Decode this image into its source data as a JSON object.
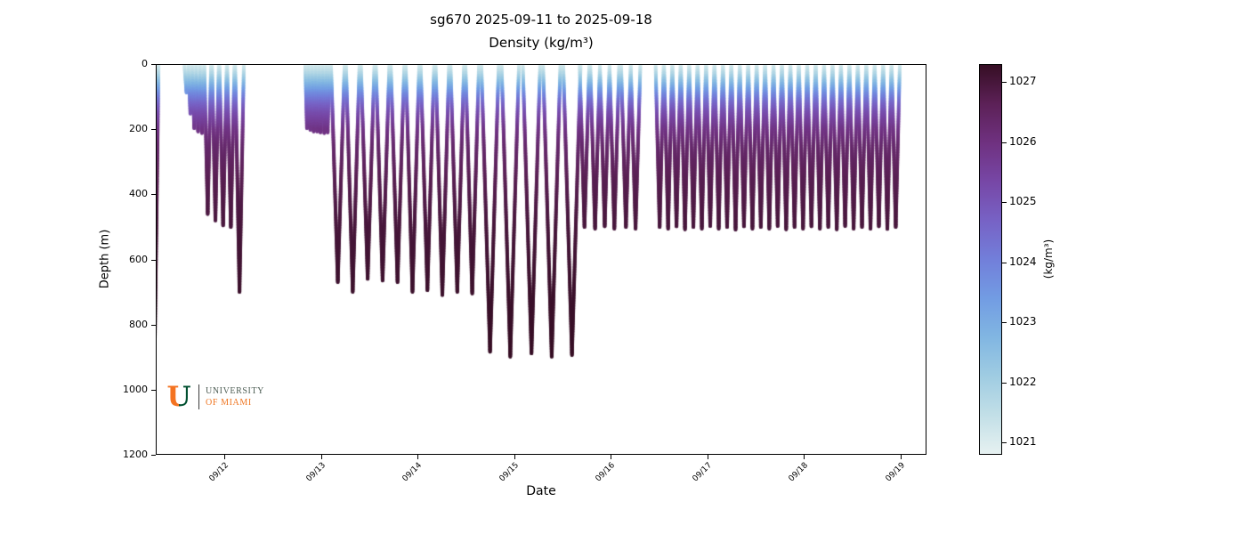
{
  "chart_data": {
    "type": "scatter",
    "title": "sg670 2025-09-11 to 2025-09-18",
    "subtitle": "Density (kg/m³)",
    "xlabel": "Date",
    "ylabel": "Depth (m)",
    "colorbar_label": "(kg/m³)",
    "grid": false,
    "legend": "colorbar-right",
    "x_domain": [
      11.29,
      19.27
    ],
    "y_domain": [
      0,
      1200
    ],
    "c_domain": [
      1020.8,
      1027.3
    ],
    "x_ticks": [
      {
        "v": 12,
        "label": "09/12"
      },
      {
        "v": 13,
        "label": "09/13"
      },
      {
        "v": 14,
        "label": "09/14"
      },
      {
        "v": 15,
        "label": "09/15"
      },
      {
        "v": 16,
        "label": "09/16"
      },
      {
        "v": 17,
        "label": "09/17"
      },
      {
        "v": 18,
        "label": "09/18"
      },
      {
        "v": 19,
        "label": "09/19"
      }
    ],
    "y_ticks": [
      {
        "v": 0,
        "label": "0"
      },
      {
        "v": 200,
        "label": "200"
      },
      {
        "v": 400,
        "label": "400"
      },
      {
        "v": 600,
        "label": "600"
      },
      {
        "v": 800,
        "label": "800"
      },
      {
        "v": 1000,
        "label": "1000"
      },
      {
        "v": 1200,
        "label": "1200"
      }
    ],
    "colorbar_ticks": [
      {
        "v": 1021,
        "label": "1021"
      },
      {
        "v": 1022,
        "label": "1022"
      },
      {
        "v": 1023,
        "label": "1023"
      },
      {
        "v": 1024,
        "label": "1024"
      },
      {
        "v": 1025,
        "label": "1025"
      },
      {
        "v": 1026,
        "label": "1026"
      },
      {
        "v": 1027,
        "label": "1027"
      }
    ],
    "colormap": [
      [
        1020.8,
        "#e6f1f1"
      ],
      [
        1021.45,
        "#c2dfe7"
      ],
      [
        1022.1,
        "#9fcce2"
      ],
      [
        1022.75,
        "#81b6e2"
      ],
      [
        1023.4,
        "#729ce3"
      ],
      [
        1024.05,
        "#727fda"
      ],
      [
        1024.7,
        "#7762c5"
      ],
      [
        1025.35,
        "#7747a6"
      ],
      [
        1026.0,
        "#6f3180"
      ],
      [
        1026.65,
        "#5c2157"
      ],
      [
        1027.3,
        "#360e24"
      ]
    ],
    "density_profile": [
      [
        0,
        1021.0
      ],
      [
        30,
        1021.8
      ],
      [
        60,
        1022.8
      ],
      [
        90,
        1023.8
      ],
      [
        120,
        1024.6
      ],
      [
        150,
        1025.2
      ],
      [
        200,
        1025.9
      ],
      [
        250,
        1026.3
      ],
      [
        350,
        1026.7
      ],
      [
        500,
        1027.0
      ],
      [
        700,
        1027.2
      ],
      [
        900,
        1027.3
      ]
    ],
    "dives": [
      [
        11.27,
        880,
        0.04
      ],
      [
        11.6,
        85,
        0.022
      ],
      [
        11.64,
        150,
        0.022
      ],
      [
        11.68,
        195,
        0.022
      ],
      [
        11.72,
        205,
        0.022
      ],
      [
        11.76,
        210,
        0.022
      ],
      [
        11.82,
        460,
        0.035
      ],
      [
        11.9,
        480,
        0.035
      ],
      [
        11.98,
        495,
        0.038
      ],
      [
        12.06,
        500,
        0.038
      ],
      [
        12.15,
        700,
        0.045
      ],
      [
        12.85,
        195,
        0.018
      ],
      [
        12.885,
        200,
        0.018
      ],
      [
        12.92,
        205,
        0.018
      ],
      [
        12.955,
        205,
        0.018
      ],
      [
        12.99,
        208,
        0.018
      ],
      [
        13.03,
        210,
        0.018
      ],
      [
        13.065,
        208,
        0.018
      ],
      [
        13.17,
        670,
        0.07
      ],
      [
        13.325,
        700,
        0.07
      ],
      [
        13.48,
        660,
        0.07
      ],
      [
        13.635,
        665,
        0.07
      ],
      [
        13.79,
        670,
        0.07
      ],
      [
        13.945,
        700,
        0.07
      ],
      [
        14.1,
        695,
        0.07
      ],
      [
        14.255,
        710,
        0.07
      ],
      [
        14.41,
        700,
        0.07
      ],
      [
        14.565,
        705,
        0.07
      ],
      [
        14.75,
        885,
        0.09
      ],
      [
        14.96,
        900,
        0.09
      ],
      [
        15.18,
        890,
        0.09
      ],
      [
        15.39,
        900,
        0.09
      ],
      [
        15.6,
        895,
        0.09
      ],
      [
        15.73,
        500,
        0.05
      ],
      [
        15.84,
        505,
        0.05
      ],
      [
        15.94,
        498,
        0.05
      ],
      [
        16.04,
        505,
        0.05
      ],
      [
        16.16,
        500,
        0.05
      ],
      [
        16.26,
        505,
        0.05
      ],
      [
        16.51,
        500,
        0.042
      ],
      [
        16.598,
        505,
        0.042
      ],
      [
        16.685,
        498,
        0.042
      ],
      [
        16.773,
        507,
        0.042
      ],
      [
        16.86,
        500,
        0.042
      ],
      [
        16.948,
        505,
        0.042
      ],
      [
        17.035,
        497,
        0.042
      ],
      [
        17.123,
        505,
        0.042
      ],
      [
        17.21,
        500,
        0.042
      ],
      [
        17.298,
        508,
        0.042
      ],
      [
        17.385,
        498,
        0.042
      ],
      [
        17.473,
        505,
        0.042
      ],
      [
        17.56,
        500,
        0.042
      ],
      [
        17.648,
        505,
        0.042
      ],
      [
        17.735,
        497,
        0.042
      ],
      [
        17.823,
        507,
        0.042
      ],
      [
        17.91,
        500,
        0.042
      ],
      [
        17.998,
        505,
        0.042
      ],
      [
        18.085,
        498,
        0.042
      ],
      [
        18.173,
        505,
        0.042
      ],
      [
        18.26,
        500,
        0.042
      ],
      [
        18.348,
        507,
        0.042
      ],
      [
        18.435,
        497,
        0.042
      ],
      [
        18.523,
        505,
        0.042
      ],
      [
        18.61,
        500,
        0.042
      ],
      [
        18.698,
        505,
        0.042
      ],
      [
        18.785,
        498,
        0.042
      ],
      [
        18.873,
        506,
        0.042
      ],
      [
        18.96,
        500,
        0.042
      ]
    ]
  },
  "logo": {
    "letter": "U",
    "line1": "UNIVERSITY",
    "line2": "OF MIAMI",
    "u_left_color": "#f47321",
    "u_right_color": "#005030",
    "line1_color": "#4e5e55",
    "line2_color": "#ef7622",
    "divider_color": "#3a3a3a"
  }
}
